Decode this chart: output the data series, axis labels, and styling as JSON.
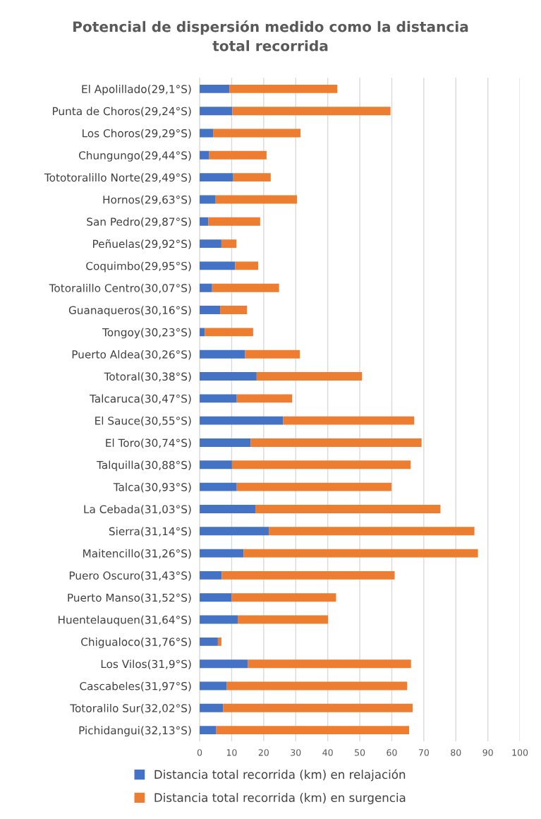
{
  "chart_data": {
    "type": "bar",
    "title": "Potencial de dispersión medido como la distancia\ntotal recorrida",
    "orientation": "horizontal",
    "stacked": true,
    "categories": [
      "El Apolillado(29,1°S)",
      "Punta de Choros(29,24°S)",
      "Los Choros(29,29°S)",
      "Chungungo(29,44°S)",
      "Tototoralillo Norte(29,49°S)",
      "Hornos(29,63°S)",
      "San Pedro(29,87°S)",
      "Peñuelas(29,92°S)",
      "Coquimbo(29,95°S)",
      "Totoralillo Centro(30,07°S)",
      "Guanaqueros(30,16°S)",
      "Tongoy(30,23°S)",
      "Puerto Aldea(30,26°S)",
      "Totoral(30,38°S)",
      "Talcaruca(30,47°S)",
      "El Sauce(30,55°S)",
      "El Toro(30,74°S)",
      "Talquilla(30,88°S)",
      "Talca(30,93°S)",
      "La Cebada(31,03°S)",
      "Sierra(31,14°S)",
      "Maitencillo(31,26°S)",
      "Puero Oscuro(31,43°S)",
      "Puerto Manso(31,52°S)",
      "Huentelauquen(31,64°S)",
      "Chigualoco(31,76°S)",
      "Los Vilos(31,9°S)",
      "Cascabeles(31,97°S)",
      "Totoralilo Sur(32,02°S)",
      "Pichidangui(32,13°S)"
    ],
    "series": [
      {
        "name": "Distancia total recorrida (km) en relajación",
        "color": "#4472c4",
        "values": [
          9.3,
          10.2,
          4.2,
          3.0,
          10.5,
          5.0,
          2.7,
          6.8,
          11.1,
          3.9,
          6.4,
          1.6,
          14.2,
          17.8,
          11.6,
          26.1,
          15.9,
          10.1,
          11.6,
          17.4,
          21.6,
          13.7,
          6.9,
          10.0,
          11.9,
          5.7,
          15.1,
          8.5,
          7.3,
          5.2
        ]
      },
      {
        "name": "Distancia total recorrida (km) en surgencia",
        "color": "#ed7d31",
        "values": [
          33.7,
          49.4,
          27.3,
          17.9,
          11.7,
          25.4,
          16.2,
          4.7,
          7.2,
          20.9,
          8.4,
          15.1,
          17.1,
          32.9,
          17.3,
          40.9,
          53.4,
          55.8,
          48.3,
          57.8,
          64.2,
          73.2,
          54.0,
          32.6,
          28.2,
          1.1,
          50.9,
          56.3,
          59.2,
          60.2
        ]
      }
    ],
    "xlim": [
      0,
      100
    ],
    "xticks": [
      0,
      10,
      20,
      30,
      40,
      50,
      60,
      70,
      80,
      90,
      100
    ],
    "grid": "x",
    "legend": "bottom"
  }
}
